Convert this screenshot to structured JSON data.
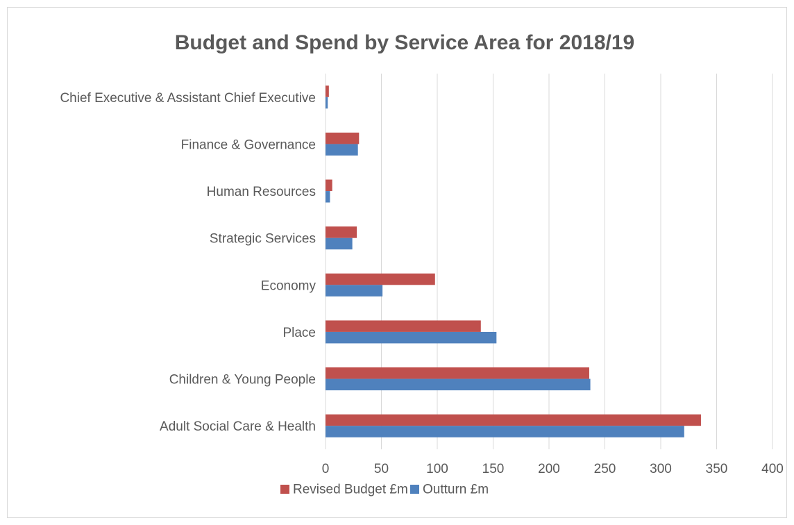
{
  "chart_data": {
    "type": "bar",
    "orientation": "horizontal",
    "title": "Budget and Spend by Service Area for 2018/19",
    "categories": [
      "Adult Social Care & Health",
      "Children & Young People",
      "Place",
      "Economy",
      "Strategic Services",
      "Human Resources",
      "Finance & Governance",
      "Chief Executive & Assistant Chief Executive"
    ],
    "series": [
      {
        "name": "Revised Budget £m",
        "color": "#c0504d",
        "values": [
          336,
          236,
          139,
          98,
          28,
          6,
          30,
          3
        ]
      },
      {
        "name": "Outturn £m",
        "color": "#4f81bd",
        "values": [
          321,
          237,
          153,
          51,
          24,
          4,
          29,
          2
        ]
      }
    ],
    "xlim": [
      0,
      400
    ],
    "xticks": [
      "0",
      "50",
      "100",
      "150",
      "200",
      "250",
      "300",
      "350",
      "400"
    ],
    "xlabel": "",
    "ylabel": "",
    "grid": true,
    "legend_position": "bottom"
  }
}
